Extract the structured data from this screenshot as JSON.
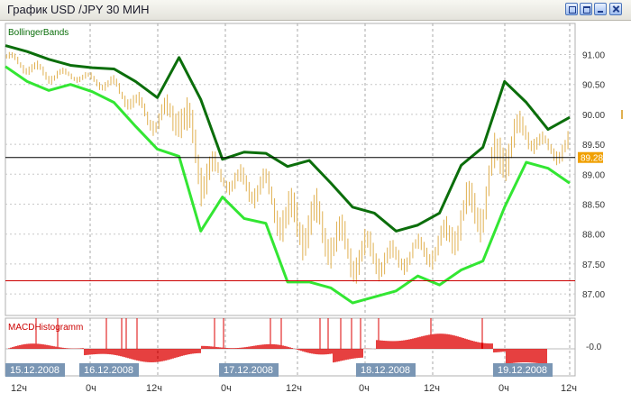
{
  "window": {
    "title": "График USD /JPY  30 МИН"
  },
  "main_panel": {
    "indicator_label": "BollingerBands"
  },
  "macd_panel": {
    "indicator_label": "MACDHistogramm",
    "zero_label": "-0.0"
  },
  "price_axis": {
    "ticks": [
      "91.00",
      "90.50",
      "90.00",
      "89.50",
      "89.00",
      "88.50",
      "88.00",
      "87.50",
      "87.00"
    ],
    "current_price": "89.28"
  },
  "date_labels": [
    "15.12.2008",
    "16.12.2008",
    "17.12.2008",
    "18.12.2008",
    "19.12.2008"
  ],
  "time_labels": [
    "12ч",
    "0ч",
    "12ч",
    "0ч",
    "12ч",
    "0ч",
    "12ч",
    "0ч",
    "12ч"
  ],
  "colors": {
    "upper_band": "#0b6e0b",
    "lower_band": "#33e633",
    "bars": "#e0b050",
    "macd": "#dd0000",
    "price_line": "#000000",
    "support_line": "#cc0000",
    "price_badge": "#f0a000"
  },
  "chart_data": {
    "type": "line",
    "ylim": [
      86.64,
      91.52
    ],
    "x": [
      0,
      6,
      12,
      18,
      24,
      30,
      36,
      42,
      48,
      54,
      60,
      66,
      72,
      78,
      84,
      90,
      96,
      102,
      108,
      114,
      120,
      126,
      132,
      138,
      144,
      150,
      156
    ],
    "series": [
      {
        "values": [
          91.15,
          91.05,
          90.92,
          90.82,
          90.78,
          90.76,
          90.55,
          90.28,
          90.95,
          90.25,
          89.25,
          89.37,
          89.35,
          89.13,
          89.23,
          88.85,
          88.45,
          88.35,
          88.05,
          88.15,
          88.35,
          89.15,
          89.45,
          90.55,
          90.2,
          89.75,
          89.95
        ]
      },
      {
        "values": [
          90.8,
          90.55,
          90.4,
          90.5,
          90.38,
          90.2,
          89.8,
          89.42,
          89.3,
          88.05,
          88.62,
          88.26,
          88.18,
          87.2,
          87.2,
          87.1,
          86.85,
          86.95,
          87.05,
          87.3,
          87.15,
          87.4,
          87.55,
          88.45,
          89.2,
          89.1,
          88.85
        ]
      }
    ],
    "current_price": 89.28,
    "support_level": 87.22
  }
}
